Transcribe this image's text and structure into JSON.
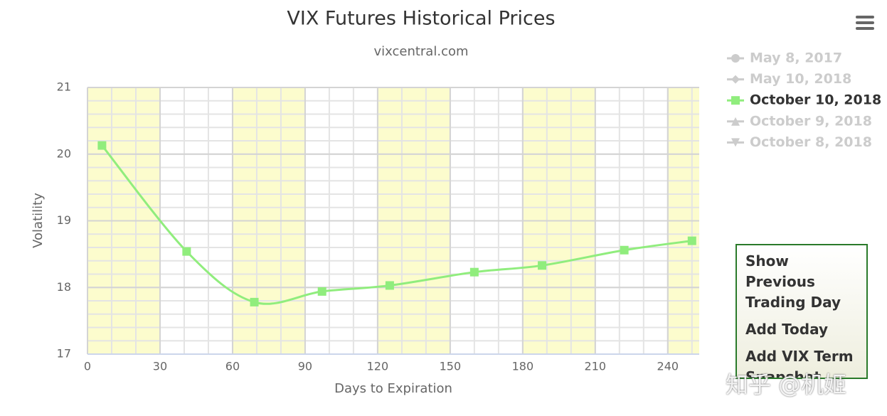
{
  "chart_data": {
    "type": "line",
    "title": "VIX Futures Historical Prices",
    "subtitle": "vixcentral.com",
    "x_label": "Days to Expiration",
    "y_label": "Volatility",
    "x": [
      6,
      41,
      69,
      97,
      125,
      160,
      188,
      222,
      250
    ],
    "series": [
      {
        "name": "May 8, 2017",
        "color": "#cccccc",
        "marker": "circle",
        "visible": false
      },
      {
        "name": "May 10, 2018",
        "color": "#cccccc",
        "marker": "diamond",
        "visible": false
      },
      {
        "name": "October 10, 2018",
        "color": "#90ed7d",
        "marker": "square",
        "visible": true,
        "values": [
          20.13,
          18.54,
          17.78,
          17.94,
          18.03,
          18.23,
          18.33,
          18.56,
          18.7
        ]
      },
      {
        "name": "October 9, 2018",
        "color": "#cccccc",
        "marker": "triangle",
        "visible": false
      },
      {
        "name": "October 8, 2018",
        "color": "#cccccc",
        "marker": "triangle-down",
        "visible": false
      }
    ],
    "xlim": [
      0,
      253
    ],
    "xticks": [
      0,
      30,
      60,
      90,
      120,
      150,
      180,
      210,
      240
    ],
    "ylim": [
      17,
      21
    ],
    "yticks": [
      17,
      18,
      19,
      20,
      21
    ],
    "grid": true,
    "legend": "top-right"
  },
  "menu": {
    "items": [
      "Show Previous Trading Day",
      "Add Today",
      "Add VIX Term Snapshot"
    ]
  },
  "watermark": "知乎 @机姬"
}
